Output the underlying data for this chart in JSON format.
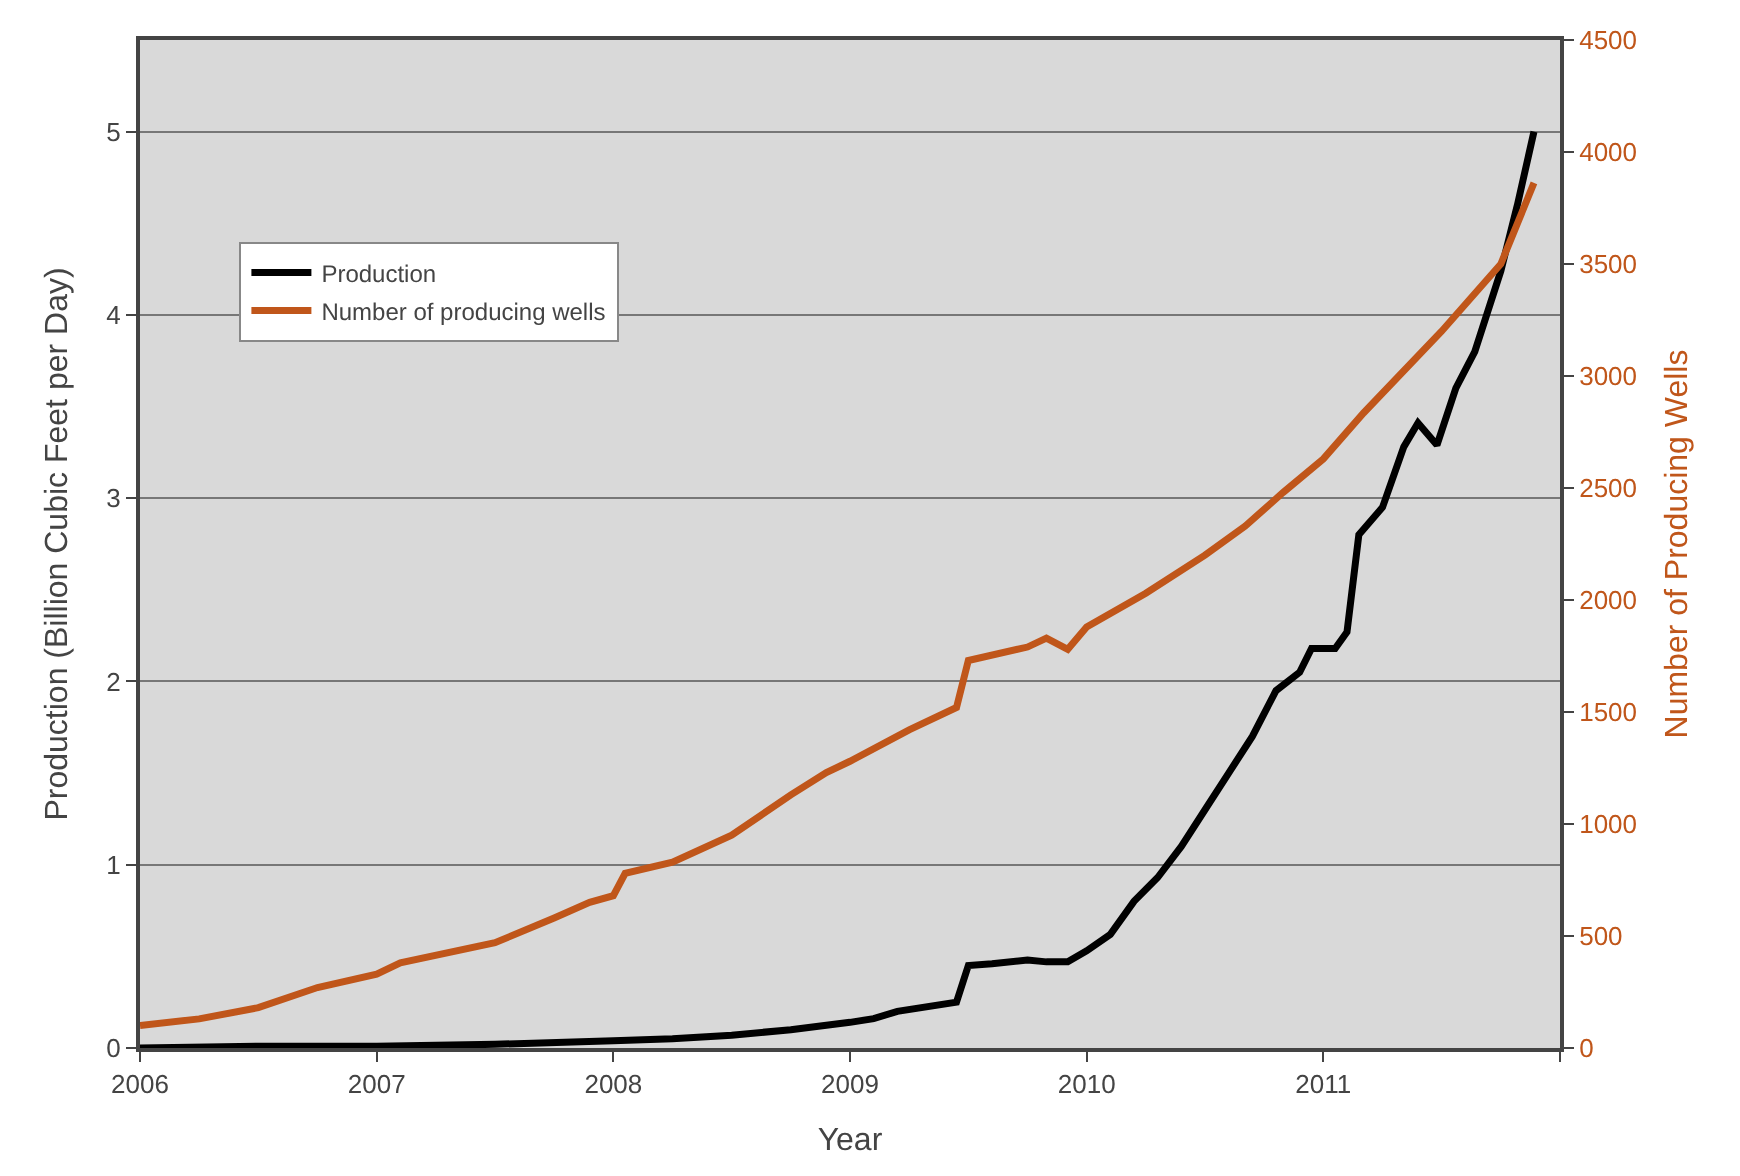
{
  "chart_data": {
    "type": "line",
    "xlabel": "Year",
    "ylabel": "Production (Billion Cubic Feet per Day)",
    "y2label": "Number of Producing Wells",
    "xlim": [
      2006,
      2012
    ],
    "xticks": [
      2006,
      2007,
      2008,
      2009,
      2010,
      2011,
      {
        "value": 2012,
        "label": null
      }
    ],
    "ylim": [
      0,
      5.5
    ],
    "yticks": [
      0,
      1,
      2,
      3,
      4,
      5
    ],
    "y2lim": [
      0,
      4500
    ],
    "y2ticks": [
      0,
      500,
      1000,
      1500,
      2000,
      2500,
      3000,
      3500,
      4000,
      4500
    ],
    "grid": "y",
    "legend": "top left",
    "marker": "none",
    "line_style": "solid",
    "series": [
      {
        "name": "Production",
        "color": "#000000",
        "x": [
          2006,
          2006.5,
          2007,
          2007.5,
          2008,
          2008.25,
          2008.5,
          2008.75,
          2009,
          2009.1,
          2009.2,
          2009.45,
          2009.5,
          2009.6,
          2009.75,
          2009.83,
          2009.92,
          2010,
          2010.1,
          2010.2,
          2010.3,
          2010.4,
          2010.5,
          2010.6,
          2010.7,
          2010.8,
          2010.9,
          2010.95,
          2011.05,
          2011.1,
          2011.15,
          2011.25,
          2011.34,
          2011.4,
          2011.48,
          2011.56,
          2011.64,
          2011.75,
          2011.82,
          2011.89
        ],
        "values": [
          0,
          0.01,
          0.01,
          0.02,
          0.04,
          0.05,
          0.07,
          0.1,
          0.14,
          0.16,
          0.2,
          0.25,
          0.45,
          0.46,
          0.48,
          0.47,
          0.47,
          0.53,
          0.62,
          0.8,
          0.93,
          1.1,
          1.3,
          1.5,
          1.7,
          1.95,
          2.05,
          2.18,
          2.18,
          2.27,
          2.8,
          2.95,
          3.28,
          3.41,
          3.29,
          3.6,
          3.8,
          4.24,
          4.6,
          5.0
        ]
      },
      {
        "name": "Number of producing wells",
        "color": "#c0561a",
        "axis": "y2",
        "x": [
          2006,
          2006.25,
          2006.5,
          2006.75,
          2007,
          2007.1,
          2007.5,
          2007.75,
          2007.9,
          2008,
          2008.05,
          2008.25,
          2008.5,
          2008.75,
          2008.9,
          2009,
          2009.25,
          2009.45,
          2009.5,
          2009.75,
          2009.83,
          2009.92,
          2010,
          2010.25,
          2010.5,
          2010.67,
          2010.83,
          2011,
          2011.17,
          2011.5,
          2011.75,
          2011.89
        ],
        "values": [
          100,
          130,
          180,
          270,
          330,
          380,
          470,
          580,
          650,
          680,
          780,
          830,
          950,
          1130,
          1230,
          1280,
          1420,
          1520,
          1730,
          1790,
          1830,
          1780,
          1880,
          2030,
          2200,
          2330,
          2480,
          2630,
          2835,
          3200,
          3500,
          3862
        ]
      }
    ]
  }
}
